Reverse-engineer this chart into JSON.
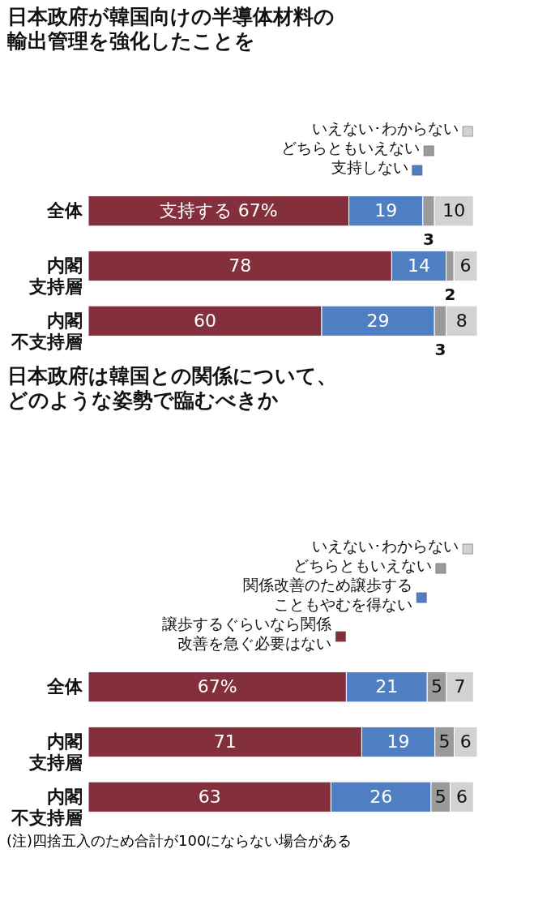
{
  "chart_data": [
    {
      "type": "bar",
      "orientation": "horizontal",
      "stacked": true,
      "title": "日本政府が韓国向けの半導体材料の輸出管理を強化したことを",
      "categories": [
        "全体",
        "内閣支持層",
        "内閣不支持層"
      ],
      "series": [
        {
          "color": "#84303c",
          "values": [
            67,
            78,
            60
          ],
          "value_labels": [
            "支持する 67%",
            "78",
            "60"
          ]
        },
        {
          "name": "支持しない",
          "color": "#4f7fc2",
          "values": [
            19,
            14,
            29
          ]
        },
        {
          "name": "どちらともいえない",
          "color": "#9a9a9a",
          "values": [
            3,
            2,
            3
          ]
        },
        {
          "name": "いえない･わからない",
          "color": "#d2d2d2",
          "values": [
            10,
            6,
            8
          ]
        }
      ],
      "data_labels": true,
      "legend": "top right"
    },
    {
      "type": "bar",
      "orientation": "horizontal",
      "stacked": true,
      "title": "日本政府は韓国との関係について、どのような姿勢で臨むべきか",
      "categories": [
        "全体",
        "内閣支持層",
        "内閣不支持層"
      ],
      "series": [
        {
          "name": "譲歩するぐらいなら関係改善を急ぐ必要はない",
          "color": "#84303c",
          "values": [
            67,
            71,
            63
          ],
          "value_labels": [
            "67%",
            "71",
            "63"
          ]
        },
        {
          "name": "関係改善のため譲歩することもやむを得ない",
          "color": "#4f7fc2",
          "values": [
            21,
            19,
            26
          ]
        },
        {
          "name": "どちらともいえない",
          "color": "#9a9a9a",
          "values": [
            5,
            5,
            5
          ]
        },
        {
          "name": "いえない･わからない",
          "color": "#d2d2d2",
          "values": [
            7,
            6,
            6
          ]
        }
      ],
      "data_labels": true,
      "legend": "top right",
      "annotations": [
        "(注)四捨五入のため合計が100にならない場合がある"
      ]
    }
  ]
}
